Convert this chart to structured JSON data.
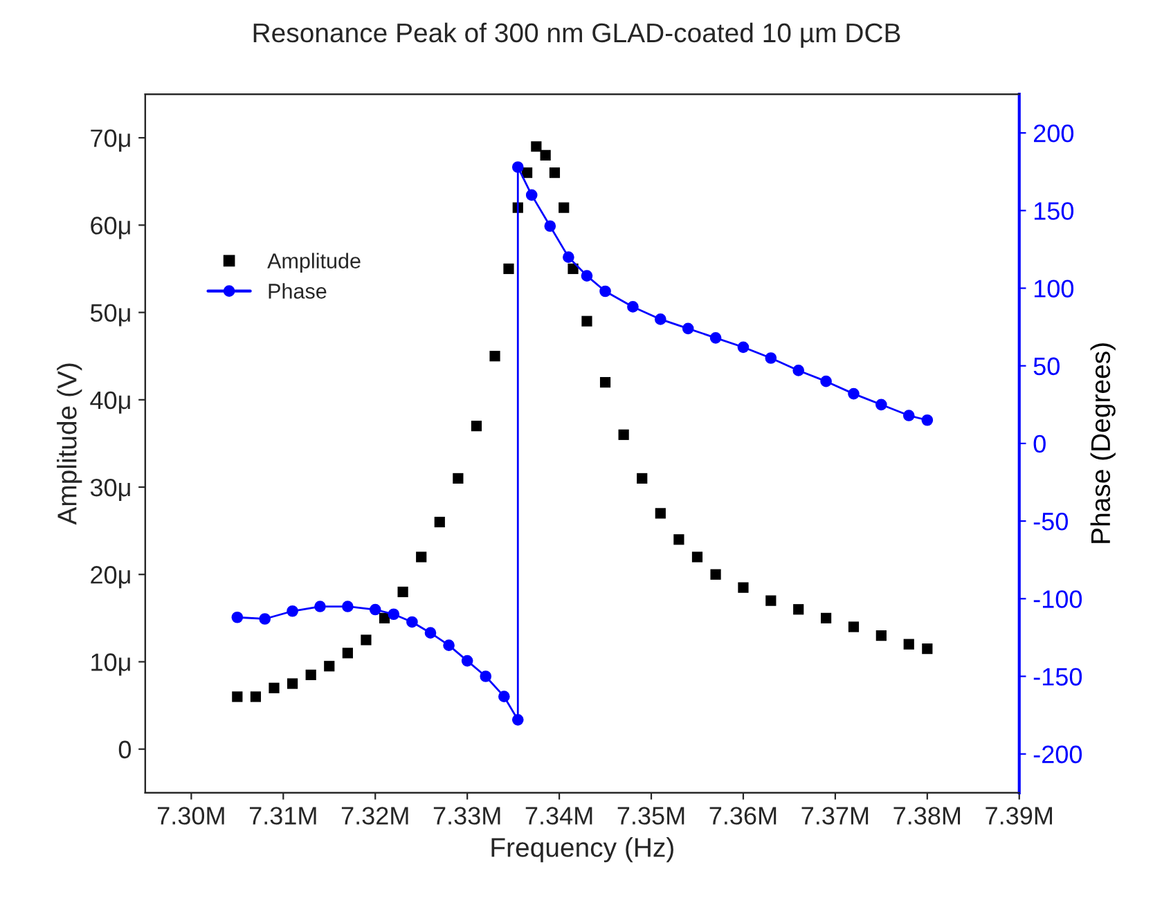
{
  "chart_data": {
    "type": "scatter",
    "title": "Resonance Peak of 300 nm GLAD-coated 10 µm DCB",
    "xlabel": "Frequency (Hz)",
    "ylabel": "Amplitude (V)",
    "y2label": "Phase (Degrees)",
    "xlim": [
      7295000,
      7390000
    ],
    "xticks": [
      {
        "value": 7300000,
        "label": "7.30M"
      },
      {
        "value": 7310000,
        "label": "7.31M"
      },
      {
        "value": 7320000,
        "label": "7.32M"
      },
      {
        "value": 7330000,
        "label": "7.33M"
      },
      {
        "value": 7340000,
        "label": "7.34M"
      },
      {
        "value": 7350000,
        "label": "7.35M"
      },
      {
        "value": 7360000,
        "label": "7.36M"
      },
      {
        "value": 7370000,
        "label": "7.37M"
      },
      {
        "value": 7380000,
        "label": "7.38M"
      },
      {
        "value": 7390000,
        "label": "7.39M"
      }
    ],
    "ylim": [
      -5,
      75
    ],
    "yticks": [
      0,
      {
        "value": 10,
        "label": "10μ"
      },
      {
        "value": 20,
        "label": "20μ"
      },
      {
        "value": 30,
        "label": "30μ"
      },
      {
        "value": 40,
        "label": "40μ"
      },
      {
        "value": 50,
        "label": "50μ"
      },
      {
        "value": 60,
        "label": "60μ"
      },
      {
        "value": 70,
        "label": "70μ"
      }
    ],
    "y2lim": [
      -225,
      225
    ],
    "y2ticks": [
      -200,
      -150,
      -100,
      -50,
      0,
      50,
      100,
      150,
      200
    ],
    "legend": "top left",
    "series": [
      {
        "name": "Amplitude",
        "marker": "square",
        "color": "#000000",
        "x": [
          7305000,
          7307000,
          7309000,
          7311000,
          7313000,
          7315000,
          7317000,
          7319000,
          7321000,
          7323000,
          7325000,
          7327000,
          7329000,
          7331000,
          7333000,
          7334500,
          7335500,
          7336500,
          7337500,
          7338500,
          7339500,
          7340500,
          7341500,
          7343000,
          7345000,
          7347000,
          7349000,
          7351000,
          7353000,
          7355000,
          7357000,
          7360000,
          7363000,
          7366000,
          7369000,
          7372000,
          7375000,
          7378000,
          7380000
        ],
        "values": [
          6,
          6,
          7,
          7.5,
          8.5,
          9.5,
          11,
          12.5,
          15,
          18,
          22,
          26,
          31,
          37,
          45,
          55,
          62,
          66,
          69,
          68,
          66,
          62,
          55,
          49,
          42,
          36,
          31,
          27,
          24,
          22,
          20,
          18.5,
          17,
          16,
          15,
          14,
          13,
          12,
          11.5
        ]
      },
      {
        "name": "Phase",
        "type": "line",
        "marker": "circle",
        "line_style": "solid",
        "color": "#0000ff",
        "axis": "y2",
        "x": [
          7305000,
          7308000,
          7311000,
          7314000,
          7317000,
          7320000,
          7322000,
          7324000,
          7326000,
          7328000,
          7330000,
          7332000,
          7334000,
          7335500,
          7335500,
          7337000,
          7339000,
          7341000,
          7343000,
          7345000,
          7348000,
          7351000,
          7354000,
          7357000,
          7360000,
          7363000,
          7366000,
          7369000,
          7372000,
          7375000,
          7378000,
          7380000
        ],
        "values": [
          -112,
          -113,
          -108,
          -105,
          -105,
          -107,
          -110,
          -115,
          -122,
          -130,
          -140,
          -150,
          -163,
          -178,
          178,
          160,
          140,
          120,
          108,
          98,
          88,
          80,
          74,
          68,
          62,
          55,
          47,
          40,
          32,
          25,
          18,
          15
        ]
      }
    ]
  }
}
